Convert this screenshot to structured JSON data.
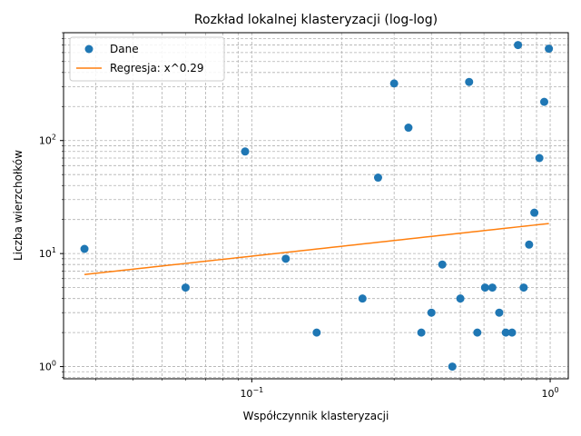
{
  "chart_data": {
    "type": "scatter",
    "title": "Rozkład lokalnej klasteryzacji (log-log)",
    "xlabel": "Współczynnik klasteryzacji",
    "ylabel": "Liczba wierzchołków",
    "xscale": "log",
    "yscale": "log",
    "xlim": [
      0.0234,
      1.15
    ],
    "ylim": [
      0.78,
      900
    ],
    "x_ticks": [
      {
        "value": 0.1,
        "base": "10",
        "exp": "−1"
      },
      {
        "value": 1,
        "base": "10",
        "exp": "0"
      }
    ],
    "y_ticks": [
      {
        "value": 1,
        "base": "10",
        "exp": "0"
      },
      {
        "value": 10,
        "base": "10",
        "exp": "1"
      },
      {
        "value": 100,
        "base": "10",
        "exp": "2"
      }
    ],
    "grid": true,
    "legend_position": "top-left",
    "series": [
      {
        "name": "Dane",
        "kind": "points",
        "color": "#1f77b4",
        "points": [
          [
            0.0275,
            11
          ],
          [
            0.06,
            5
          ],
          [
            0.095,
            80
          ],
          [
            0.13,
            9
          ],
          [
            0.165,
            2
          ],
          [
            0.235,
            4
          ],
          [
            0.265,
            47
          ],
          [
            0.3,
            320
          ],
          [
            0.335,
            130
          ],
          [
            0.37,
            2
          ],
          [
            0.4,
            3
          ],
          [
            0.435,
            8
          ],
          [
            0.47,
            1
          ],
          [
            0.5,
            4
          ],
          [
            0.535,
            330
          ],
          [
            0.57,
            2
          ],
          [
            0.605,
            5
          ],
          [
            0.64,
            5
          ],
          [
            0.675,
            3
          ],
          [
            0.71,
            2
          ],
          [
            0.745,
            2
          ],
          [
            0.78,
            700
          ],
          [
            0.815,
            5
          ],
          [
            0.85,
            12
          ],
          [
            0.885,
            23
          ],
          [
            0.92,
            70
          ],
          [
            0.955,
            220
          ],
          [
            0.99,
            650
          ]
        ]
      },
      {
        "name": "Regresja: x^0.29",
        "kind": "line",
        "color": "#ff7f0e",
        "exponent": 0.29,
        "coefficient": 18.5,
        "x_range": [
          0.0275,
          0.99
        ]
      }
    ]
  }
}
